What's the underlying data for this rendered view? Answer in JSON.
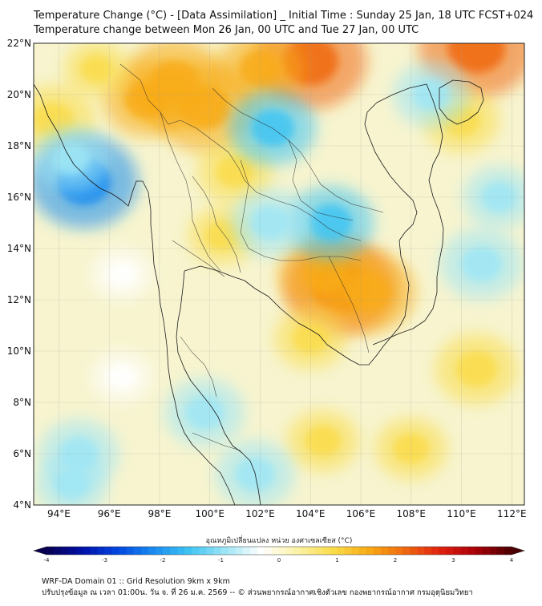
{
  "header": {
    "title_line1": "Temperature Change (°C) - [Data Assimilation] _ Initial Time : Sunday 25 Jan, 18 UTC FCST+024",
    "title_line2": "Temperature change between Mon 26 Jan, 00 UTC and Tue 27 Jan, 00 UTC"
  },
  "map": {
    "lat_labels": [
      "22°N",
      "20°N",
      "18°N",
      "16°N",
      "14°N",
      "12°N",
      "10°N",
      "8°N",
      "6°N",
      "4°N"
    ],
    "lon_labels": [
      "94°E",
      "96°E",
      "98°E",
      "100°E",
      "102°E",
      "104°E",
      "106°E",
      "108°E",
      "110°E",
      "112°E"
    ],
    "lat_range": [
      4,
      22
    ],
    "lon_range": [
      93,
      112.5
    ],
    "field_regions": [
      {
        "label": "warm",
        "lon": 97.5,
        "lat": 19.8,
        "value": 1.3
      },
      {
        "label": "warm",
        "lon": 99.8,
        "lat": 19.5,
        "value": 1.8
      },
      {
        "label": "warm",
        "lon": 98.6,
        "lat": 20.5,
        "value": 1.7
      },
      {
        "label": "warm",
        "lon": 104.0,
        "lat": 21.3,
        "value": 2.0
      },
      {
        "label": "warm",
        "lon": 102.0,
        "lat": 21.0,
        "value": 1.3
      },
      {
        "label": "warm",
        "lon": 110.6,
        "lat": 21.8,
        "value": 2.1
      },
      {
        "label": "warm",
        "lon": 105.2,
        "lat": 12.5,
        "value": 2.0
      },
      {
        "label": "warm",
        "lon": 104.6,
        "lat": 13.0,
        "value": 1.5
      },
      {
        "label": "warm",
        "lon": 106.3,
        "lat": 12.3,
        "value": 1.5
      },
      {
        "label": "warm",
        "lon": 101.0,
        "lat": 17.0,
        "value": 1.0
      },
      {
        "label": "warm",
        "lon": 100.5,
        "lat": 14.5,
        "value": 0.8
      },
      {
        "label": "warm",
        "lon": 104.0,
        "lat": 10.5,
        "value": 0.9
      },
      {
        "label": "warm",
        "lon": 110.6,
        "lat": 9.3,
        "value": 1.2
      },
      {
        "label": "warm",
        "lon": 108.0,
        "lat": 6.2,
        "value": 0.9
      },
      {
        "label": "warm",
        "lon": 104.5,
        "lat": 6.5,
        "value": 0.9
      },
      {
        "label": "warm",
        "lon": 93.8,
        "lat": 19.0,
        "value": 1.2
      },
      {
        "label": "warm",
        "lon": 95.5,
        "lat": 21.0,
        "value": 0.7
      },
      {
        "label": "warm",
        "lon": 110.0,
        "lat": 19.0,
        "value": 1.0
      },
      {
        "label": "cool",
        "lon": 95.0,
        "lat": 16.6,
        "value": -1.9
      },
      {
        "label": "cool",
        "lon": 94.5,
        "lat": 17.5,
        "value": -1.0
      },
      {
        "label": "cool",
        "lon": 104.8,
        "lat": 15.0,
        "value": -1.3
      },
      {
        "label": "cool",
        "lon": 102.4,
        "lat": 15.0,
        "value": -1.1
      },
      {
        "label": "cool",
        "lon": 102.5,
        "lat": 18.7,
        "value": -1.3
      },
      {
        "label": "cool",
        "lon": 108.8,
        "lat": 20.0,
        "value": -1.0
      },
      {
        "label": "cool",
        "lon": 111.5,
        "lat": 16.0,
        "value": -0.9
      },
      {
        "label": "cool",
        "lon": 110.8,
        "lat": 13.4,
        "value": -1.2
      },
      {
        "label": "cool",
        "lon": 99.8,
        "lat": 7.6,
        "value": -1.1
      },
      {
        "label": "cool",
        "lon": 101.8,
        "lat": 5.2,
        "value": -1.1
      },
      {
        "label": "cool",
        "lon": 94.8,
        "lat": 6.0,
        "value": -1.1
      },
      {
        "label": "cool",
        "lon": 96.5,
        "lat": 13.0,
        "value": -0.6
      },
      {
        "label": "cool",
        "lon": 96.5,
        "lat": 9.0,
        "value": -0.6
      },
      {
        "label": "cool",
        "lon": 94.5,
        "lat": 4.8,
        "value": -0.9
      }
    ]
  },
  "colorbar": {
    "title": "อุณหภูมิเปลี่ยนแปลง หน่วย องศาเซลเซียส (°C)",
    "range": [
      -4,
      4
    ],
    "ticks": [
      "-4",
      "-3",
      "-2",
      "-1",
      "0",
      "1",
      "2",
      "3",
      "4"
    ],
    "colors": [
      "#08004f",
      "#0010a8",
      "#0047e0",
      "#1a8cf0",
      "#3fc4f2",
      "#9ee6f6",
      "#ffffff",
      "#fbf2a6",
      "#fadc4a",
      "#f8ab14",
      "#f06a10",
      "#e02010",
      "#a80008",
      "#4a0002"
    ]
  },
  "footer": {
    "line1": "WRF-DA Domain 01 :: Grid Resolution 9km x 9km",
    "line2": "ปรับปรุงข้อมูล ณ เวลา 01:00น. วัน จ. ที่ 26 ม.ค. 2569 -- © ส่วนพยากรณ์อากาศเชิงตัวเลข กองพยากรณ์อากาศ กรมอุตุนิยมวิทยา"
  }
}
